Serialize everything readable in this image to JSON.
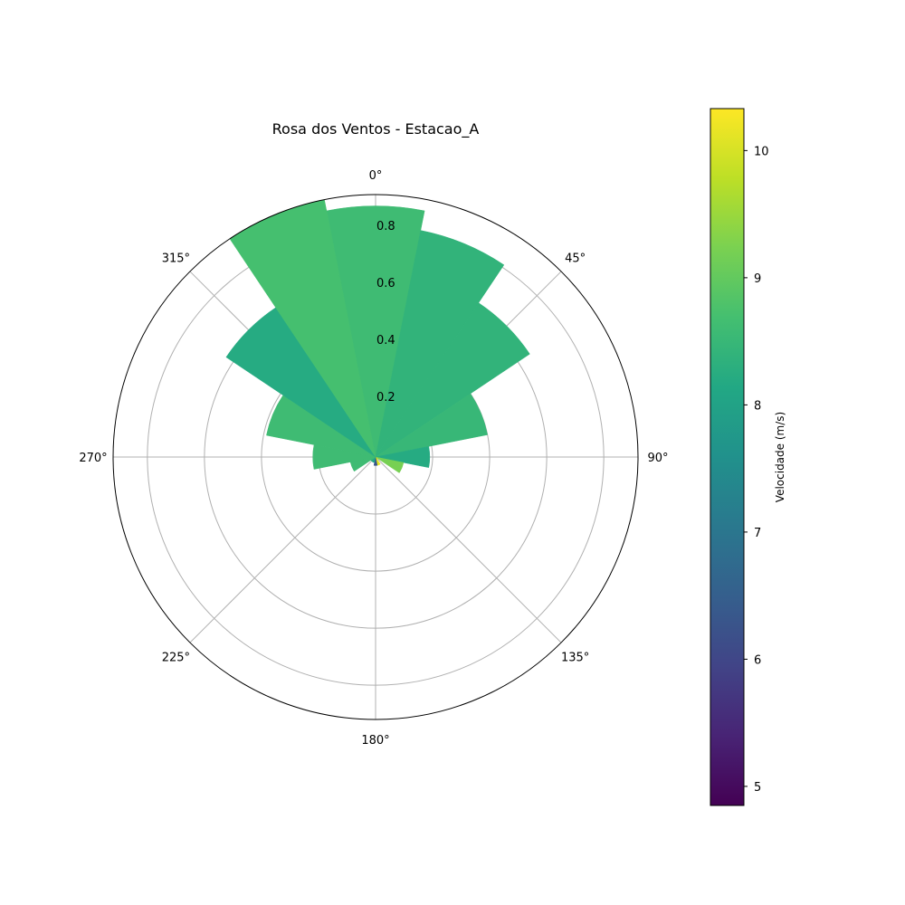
{
  "chart_data": {
    "type": "polar-bar",
    "title": "Rosa dos Ventos - Estacao_A",
    "direction_unit": "degrees",
    "theta_zero": "N",
    "theta_direction": "clockwise",
    "theta_ticks": [
      "0°",
      "45°",
      "90°",
      "135°",
      "180°",
      "225°",
      "270°",
      "315°"
    ],
    "r_ticks": [
      "0.2",
      "0.4",
      "0.6",
      "0.8"
    ],
    "r_tick_values": [
      0.2,
      0.4,
      0.6,
      0.8
    ],
    "rmax": 0.92,
    "grid": true,
    "bin_width_deg": 22.5,
    "sectors": [
      {
        "direction": 0,
        "frequency": 0.88,
        "speed": 8.6
      },
      {
        "direction": 22.5,
        "frequency": 0.81,
        "speed": 8.4
      },
      {
        "direction": 45,
        "frequency": 0.65,
        "speed": 8.4
      },
      {
        "direction": 67.5,
        "frequency": 0.4,
        "speed": 8.5
      },
      {
        "direction": 90,
        "frequency": 0.19,
        "speed": 8.2
      },
      {
        "direction": 112.5,
        "frequency": 0.1,
        "speed": 9.2
      },
      {
        "direction": 135,
        "frequency": 0.01,
        "speed": 9.8
      },
      {
        "direction": 157.5,
        "frequency": 0.03,
        "speed": 10.1
      },
      {
        "direction": 180,
        "frequency": 0.03,
        "speed": 6.3
      },
      {
        "direction": 202.5,
        "frequency": 0.02,
        "speed": 8.0
      },
      {
        "direction": 225,
        "frequency": 0.02,
        "speed": 8.2
      },
      {
        "direction": 247.5,
        "frequency": 0.09,
        "speed": 8.6
      },
      {
        "direction": 270,
        "frequency": 0.22,
        "speed": 8.6
      },
      {
        "direction": 292.5,
        "frequency": 0.39,
        "speed": 8.6
      },
      {
        "direction": 315,
        "frequency": 0.63,
        "speed": 8.2
      },
      {
        "direction": 337.5,
        "frequency": 0.92,
        "speed": 8.7
      }
    ],
    "colorbar": {
      "label": "Velocidade (m/s)",
      "colormap": "viridis",
      "vmin": 4.85,
      "vmax": 10.33,
      "ticks": [
        "5",
        "6",
        "7",
        "8",
        "9",
        "10"
      ],
      "tick_values": [
        5,
        6,
        7,
        8,
        9,
        10
      ]
    }
  },
  "colors": {
    "grid": "#b0b0b0",
    "axis": "#000000",
    "viridis": [
      "#440154",
      "#482475",
      "#414487",
      "#355f8d",
      "#2a788e",
      "#21918c",
      "#22a884",
      "#44bf70",
      "#7ad151",
      "#bddf26",
      "#fde725"
    ]
  }
}
